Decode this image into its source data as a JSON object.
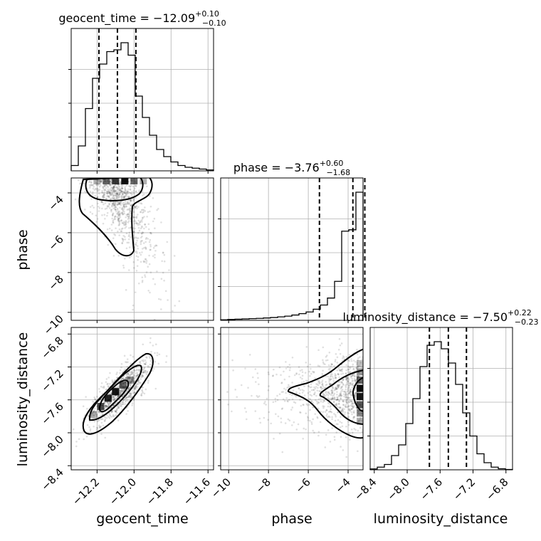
{
  "chart_data": {
    "type": "corner",
    "parameters": [
      "geocent_time",
      "phase",
      "luminosity_distance"
    ],
    "axis_labels": [
      "geocent_time",
      "phase",
      "luminosity_distance"
    ],
    "titles": [
      {
        "name": "geocent_time",
        "median": "−12.09",
        "plus": "+0.10",
        "minus": "−0.10"
      },
      {
        "name": "phase",
        "median": "−3.76",
        "plus": "+0.60",
        "minus": "−1.68"
      },
      {
        "name": "luminosity_distance",
        "median": "−7.50",
        "plus": "+0.22",
        "minus": "−0.23"
      }
    ],
    "ranges": [
      [
        -12.34,
        -11.57
      ],
      [
        -10.4,
        -3.25
      ],
      [
        -8.45,
        -6.72
      ]
    ],
    "ticks": [
      {
        "values": [
          -12.2,
          -12.0,
          -11.8,
          -11.6
        ],
        "labels": [
          "−12.2",
          "−12.0",
          "−11.8",
          "−11.6"
        ]
      },
      {
        "values": [
          -10,
          -8,
          -6,
          -4
        ],
        "labels": [
          "−10",
          "−8",
          "−6",
          "−4"
        ]
      },
      {
        "values": [
          -8.4,
          -8.0,
          -7.6,
          -7.2,
          -6.8
        ],
        "labels": [
          "−8.4",
          "−8.0",
          "−7.6",
          "−7.2",
          "−6.8"
        ]
      }
    ],
    "quantiles": [
      [
        -12.19,
        -12.09,
        -11.99
      ],
      [
        -5.44,
        -3.76,
        -3.16
      ],
      [
        -7.73,
        -7.5,
        -7.28
      ]
    ],
    "histograms": [
      {
        "edges_range": [
          -12.34,
          -11.57
        ],
        "counts": [
          3,
          14,
          35,
          52,
          60,
          67,
          68,
          72,
          65,
          42,
          30,
          20,
          12,
          8,
          5,
          3,
          2,
          1.5,
          1,
          0.5
        ]
      },
      {
        "edges_range": [
          -10.4,
          -3.25
        ],
        "counts": [
          0.4,
          0.6,
          0.8,
          1.0,
          1.2,
          1.4,
          1.7,
          2.0,
          2.5,
          3.0,
          3.8,
          4.8,
          6.0,
          8.0,
          11,
          16,
          28,
          64,
          65,
          92
        ]
      },
      {
        "edges_range": [
          -8.45,
          -6.72
        ],
        "counts": [
          0.5,
          1.5,
          3,
          8,
          14,
          26,
          40,
          58,
          70,
          72,
          68,
          60,
          48,
          32,
          19,
          9,
          4,
          1.5,
          0.6,
          0.2
        ]
      }
    ],
    "grid": true
  }
}
